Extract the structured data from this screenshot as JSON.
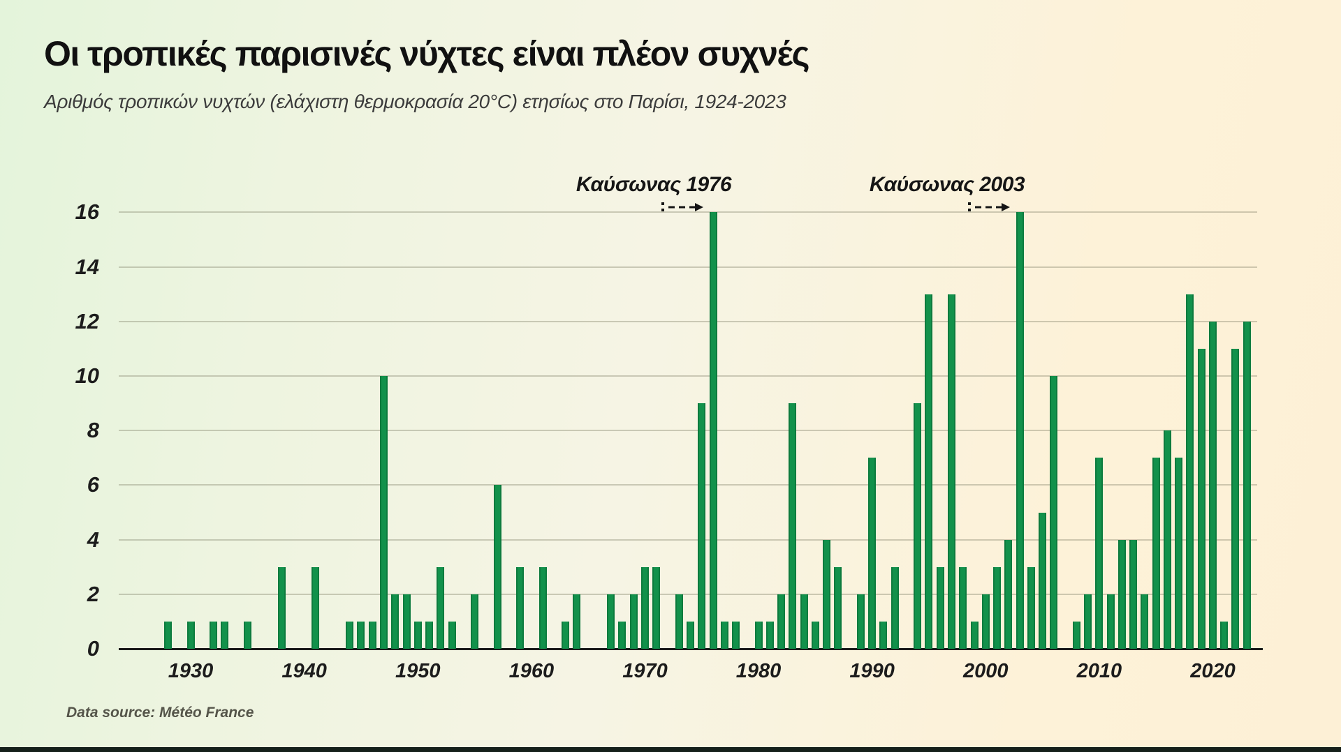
{
  "chart_data": {
    "type": "bar",
    "title": "Οι τροπικές παρισινές νύχτες είναι πλέον συχνές",
    "subtitle": "Αριθμός τροπικών νυχτών (ελάχιστη θερμοκρασία 20°C) ετησίως στο Παρίσι, 1924-2023",
    "x_start": 1924,
    "x_end": 2023,
    "values": [
      0,
      0,
      0,
      0,
      1,
      0,
      1,
      0,
      1,
      1,
      0,
      1,
      0,
      0,
      3,
      0,
      0,
      3,
      0,
      0,
      1,
      1,
      1,
      10,
      2,
      2,
      1,
      1,
      3,
      1,
      0,
      2,
      0,
      6,
      0,
      3,
      0,
      3,
      0,
      1,
      2,
      0,
      0,
      2,
      1,
      2,
      3,
      3,
      0,
      2,
      1,
      9,
      16,
      1,
      1,
      0,
      1,
      1,
      2,
      9,
      2,
      1,
      4,
      3,
      0,
      2,
      7,
      1,
      3,
      0,
      9,
      13,
      3,
      13,
      3,
      1,
      2,
      3,
      4,
      16,
      3,
      5,
      10,
      0,
      1,
      2,
      7,
      2,
      4,
      4,
      2,
      7,
      8,
      7,
      13,
      11,
      12,
      1,
      11,
      12
    ],
    "ylim": [
      0,
      16
    ],
    "y_ticks": [
      0,
      2,
      4,
      6,
      8,
      10,
      12,
      14,
      16
    ],
    "x_ticks": [
      1930,
      1940,
      1950,
      1960,
      1970,
      1980,
      1990,
      2000,
      2010,
      2020
    ],
    "grid": true,
    "legend": "none",
    "annotations": [
      {
        "label": "Καύσωνας 1976",
        "target_year": 1976
      },
      {
        "label": "Καύσωνας 2003",
        "target_year": 2003
      }
    ],
    "source": "Data source: Météo France",
    "colors": {
      "bar": "#12914B",
      "background_left": "#e4f4db",
      "background_right": "#fdf2d8",
      "axis_line": "#1a1a1a",
      "grid_line": "#828269",
      "text": "#1a1a1a",
      "bottom_strip": "#15201a"
    }
  }
}
